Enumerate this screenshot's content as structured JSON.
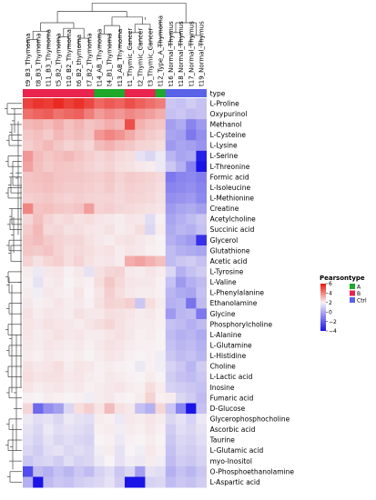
{
  "chart_data": {
    "type": "heatmap",
    "title": "",
    "samples": [
      "t9_B3_Thymoma",
      "t8_B3_Thymoma",
      "t11_B3_Thymoma",
      "t5_B2_Thymoma",
      "t10_B2_Thymoma",
      "t6_B2_thymoma",
      "t7_B2_Thymoma",
      "t14_AB_Thymoma",
      "t4_B1_Thymoma",
      "t13_AB_Thymoma",
      "t1_Thymic_Cancer",
      "t2_Thymic_Cancer",
      "t3_Thymic_Cancer",
      "t12_Type_A_Thymoma",
      "t16_Normal_Thymus",
      "t18_Normal_Thymus",
      "t17_Normal_Thymus",
      "t19_Normal_Thymus"
    ],
    "sample_types": [
      "B",
      "B",
      "B",
      "B",
      "B",
      "B",
      "B",
      "A",
      "A",
      "A",
      "B",
      "B",
      "B",
      "A",
      "Ctrl",
      "Ctrl",
      "Ctrl",
      "Ctrl"
    ],
    "metabolites": [
      "L-Proline",
      "Oxypurinol",
      "Methanol",
      "L-Cysteine",
      "L-Lysine",
      "L-Serine",
      "L-Threonine",
      "Formic acid",
      "L-Isoleucine",
      "L-Methionine",
      "Creatine",
      "Acetylcholine",
      "Succinic acid",
      "Glycerol",
      "Glutathione",
      "Acetic acid",
      "L-Tyrosine",
      "L-Valine",
      "L-Phenylalanine",
      "Ethanolamine",
      "Glycine",
      "Phosphorylcholine",
      "L-Alanine",
      "L-Glutamine",
      "L-Histidine",
      "Choline",
      "L-Lactic acid",
      "Inosine",
      "Fumaric acid",
      "D-Glucose",
      "Glycerophosphocholine",
      "Ascorbic acid",
      "Taurine",
      "L-Glutamic acid",
      "myo-Inositol",
      "O-Phosphoethanolamine",
      "L-Aspartic acid"
    ],
    "values": [
      [
        4.8,
        5.2,
        5.0,
        5.5,
        4.9,
        5.3,
        4.7,
        3.8,
        4.2,
        3.9,
        4.5,
        4.0,
        3.6,
        3.2,
        -0.8,
        -0.9,
        -0.7,
        -0.9
      ],
      [
        3.6,
        3.9,
        4.1,
        3.5,
        3.8,
        4.0,
        3.2,
        2.4,
        2.8,
        2.5,
        2.9,
        2.6,
        2.3,
        1.9,
        -0.9,
        -0.8,
        -1.0,
        -0.9
      ],
      [
        1.6,
        1.8,
        1.5,
        1.9,
        1.4,
        1.7,
        1.3,
        1.5,
        1.9,
        1.6,
        4.5,
        1.8,
        1.4,
        1.2,
        -1.5,
        -1.3,
        -2.0,
        -1.6
      ],
      [
        1.2,
        1.4,
        1.1,
        1.6,
        1.3,
        1.5,
        1.2,
        2.5,
        3.0,
        2.6,
        2.0,
        1.4,
        1.1,
        0.9,
        -1.4,
        -1.5,
        -2.2,
        -1.8
      ],
      [
        1.0,
        1.3,
        1.6,
        1.2,
        0.9,
        1.1,
        0.8,
        1.5,
        1.8,
        1.4,
        1.2,
        0.9,
        0.8,
        0.6,
        -1.6,
        -1.4,
        -1.5,
        -1.7
      ],
      [
        2.5,
        1.5,
        1.2,
        1.4,
        1.6,
        1.3,
        1.0,
        0.8,
        1.0,
        0.7,
        0.6,
        -0.3,
        -0.5,
        -0.2,
        -1.1,
        -1.4,
        -1.3,
        -3.8
      ],
      [
        2.2,
        1.4,
        1.1,
        1.3,
        1.2,
        1.1,
        0.9,
        0.7,
        0.9,
        0.6,
        0.5,
        0.3,
        0.2,
        -0.2,
        -0.8,
        -1.2,
        -2.0,
        -4.0
      ],
      [
        1.3,
        1.4,
        1.5,
        1.3,
        1.2,
        1.2,
        1.1,
        1.0,
        1.2,
        0.9,
        1.1,
        1.0,
        0.9,
        0.7,
        -2.2,
        -2.0,
        -1.9,
        -2.1
      ],
      [
        1.2,
        1.3,
        1.4,
        1.2,
        1.1,
        1.1,
        1.0,
        0.9,
        1.1,
        0.8,
        1.0,
        0.9,
        0.8,
        0.6,
        -2.0,
        -1.9,
        -1.8,
        -2.0
      ],
      [
        1.0,
        1.1,
        1.2,
        1.0,
        0.9,
        1.0,
        0.9,
        0.8,
        0.9,
        0.7,
        0.9,
        0.8,
        0.7,
        0.5,
        -1.8,
        -1.7,
        -1.6,
        -1.9
      ],
      [
        3.0,
        1.3,
        1.4,
        1.2,
        1.1,
        1.3,
        2.3,
        0.9,
        1.0,
        0.8,
        0.7,
        0.6,
        0.5,
        0.4,
        -1.6,
        -1.4,
        -1.3,
        -1.5
      ],
      [
        0.8,
        1.4,
        0.9,
        0.6,
        0.7,
        0.5,
        0.6,
        0.4,
        0.3,
        0.2,
        0.4,
        0.3,
        -0.4,
        0.1,
        -1.4,
        -1.2,
        -1.0,
        -0.8
      ],
      [
        1.1,
        1.6,
        0.7,
        0.8,
        0.5,
        0.6,
        0.4,
        0.3,
        0.5,
        0.2,
        0.3,
        0.6,
        -0.5,
        0.2,
        -1.3,
        -1.1,
        -1.2,
        -0.9
      ],
      [
        1.3,
        1.5,
        1.1,
        0.9,
        0.7,
        0.8,
        0.5,
        0.3,
        0.2,
        0.4,
        0.5,
        0.3,
        0.2,
        0.0,
        -1.2,
        -1.4,
        -1.6,
        -3.5
      ],
      [
        1.2,
        1.1,
        1.3,
        0.9,
        0.6,
        0.7,
        0.6,
        0.4,
        0.5,
        0.2,
        0.4,
        0.3,
        0.1,
        0.0,
        -1.0,
        -1.2,
        -1.3,
        -1.4
      ],
      [
        0.9,
        0.5,
        0.8,
        1.0,
        0.6,
        0.9,
        0.5,
        0.3,
        0.4,
        0.2,
        1.9,
        2.2,
        1.8,
        1.4,
        -1.0,
        -0.8,
        -0.7,
        -0.9
      ],
      [
        0.2,
        -0.2,
        0.3,
        0.4,
        0.1,
        0.3,
        -0.3,
        0.5,
        0.8,
        0.9,
        0.3,
        0.2,
        0.4,
        0.2,
        -0.5,
        -1.2,
        -0.9,
        -0.7
      ],
      [
        0.1,
        -0.3,
        0.2,
        0.3,
        0.0,
        0.2,
        0.1,
        0.6,
        1.2,
        0.7,
        0.4,
        0.3,
        0.3,
        0.1,
        -0.9,
        -1.6,
        -1.2,
        -1.0
      ],
      [
        0.2,
        -0.1,
        0.3,
        0.2,
        0.1,
        0.4,
        0.0,
        0.4,
        1.0,
        0.6,
        0.3,
        0.2,
        0.2,
        0.1,
        -1.1,
        -1.3,
        -1.4,
        -0.9
      ],
      [
        0.3,
        0.1,
        0.2,
        0.4,
        0.2,
        0.3,
        0.1,
        0.5,
        0.9,
        0.8,
        1.0,
        -0.8,
        0.6,
        0.2,
        -1.2,
        -1.1,
        -2.3,
        -1.0
      ],
      [
        0.5,
        0.2,
        0.4,
        0.3,
        0.2,
        0.5,
        0.3,
        0.3,
        0.6,
        0.5,
        0.4,
        0.2,
        0.3,
        0.1,
        -1.6,
        -1.1,
        -1.0,
        -2.2
      ],
      [
        0.4,
        0.3,
        0.5,
        0.4,
        0.3,
        0.2,
        0.4,
        0.6,
        0.8,
        0.5,
        0.3,
        0.2,
        0.2,
        0.1,
        -0.9,
        -1.0,
        -1.2,
        -1.0
      ],
      [
        0.4,
        0.2,
        0.3,
        0.5,
        0.3,
        0.4,
        0.2,
        0.2,
        0.4,
        0.5,
        0.3,
        0.1,
        0.2,
        0.0,
        -1.0,
        -1.2,
        -1.1,
        -1.3
      ],
      [
        0.3,
        0.2,
        0.4,
        0.3,
        0.2,
        0.3,
        0.1,
        0.3,
        0.5,
        0.4,
        0.2,
        0.1,
        0.1,
        0.0,
        -0.9,
        -1.1,
        -1.0,
        -1.2
      ],
      [
        0.2,
        0.1,
        0.3,
        0.2,
        0.1,
        0.2,
        0.0,
        0.2,
        0.4,
        0.3,
        0.1,
        0.0,
        0.1,
        -0.1,
        -0.8,
        -1.0,
        -0.9,
        -1.1
      ],
      [
        0.5,
        0.3,
        0.4,
        0.6,
        0.2,
        0.4,
        0.3,
        0.1,
        0.2,
        0.1,
        0.0,
        -0.2,
        0.1,
        -0.1,
        -0.6,
        -0.8,
        -1.1,
        -0.7
      ],
      [
        0.6,
        0.4,
        0.5,
        0.5,
        0.3,
        0.4,
        0.2,
        0.1,
        0.3,
        0.2,
        0.1,
        0.0,
        0.2,
        0.0,
        -0.7,
        -0.9,
        -1.0,
        -0.8
      ],
      [
        0.4,
        0.2,
        0.3,
        0.4,
        0.2,
        0.3,
        0.1,
        0.2,
        0.3,
        0.4,
        0.2,
        0.1,
        0.6,
        0.2,
        -0.6,
        -0.7,
        -0.8,
        -0.9
      ],
      [
        0.1,
        0.0,
        0.2,
        0.1,
        0.0,
        0.1,
        -0.1,
        0.2,
        0.3,
        0.1,
        0.0,
        0.2,
        0.9,
        0.1,
        0.2,
        -0.5,
        -0.7,
        -1.0
      ],
      [
        0.8,
        -2.5,
        -1.8,
        -1.5,
        -0.5,
        0.6,
        1.0,
        0.4,
        1.5,
        0.5,
        0.3,
        -0.9,
        -1.2,
        0.8,
        -0.8,
        -2.0,
        -4.0,
        -0.9
      ],
      [
        -0.2,
        -0.4,
        -0.3,
        -0.5,
        -0.2,
        -0.3,
        -0.4,
        0.2,
        0.1,
        -0.2,
        0.3,
        0.2,
        0.4,
        0.2,
        -0.5,
        -0.3,
        -0.6,
        -0.2
      ],
      [
        -0.3,
        -0.5,
        -0.2,
        -0.4,
        -0.3,
        -0.4,
        -0.5,
        0.1,
        0.2,
        -0.1,
        0.2,
        0.1,
        0.3,
        0.1,
        -0.7,
        -0.4,
        -0.5,
        -0.3
      ],
      [
        -0.4,
        -0.6,
        -0.3,
        -0.5,
        -0.4,
        -0.5,
        -0.6,
        0.0,
        0.1,
        -0.2,
        0.1,
        0.0,
        0.2,
        0.0,
        -0.8,
        -0.5,
        -0.6,
        -0.4
      ],
      [
        -0.5,
        -0.7,
        -0.4,
        -0.3,
        -0.5,
        -0.4,
        -0.5,
        -0.1,
        0.2,
        -0.3,
        0.0,
        -0.1,
        0.3,
        0.1,
        -0.9,
        -0.6,
        -0.7,
        -0.5
      ],
      [
        -0.8,
        -0.6,
        -0.5,
        -0.7,
        -0.4,
        -0.6,
        -0.5,
        -0.2,
        0.0,
        -0.3,
        -0.1,
        -0.2,
        0.2,
        -0.1,
        -1.0,
        -0.7,
        -0.8,
        -0.6
      ],
      [
        -3.0,
        -1.0,
        -1.2,
        -0.9,
        -1.1,
        -0.8,
        -1.0,
        -0.6,
        -0.4,
        -0.8,
        -0.5,
        -1.5,
        -0.3,
        -0.4,
        -1.2,
        -0.9,
        -1.1,
        -0.8
      ],
      [
        -1.2,
        -4.0,
        -1.0,
        -0.8,
        -0.9,
        -0.7,
        -0.6,
        -0.5,
        -0.3,
        -0.7,
        -4.0,
        -4.0,
        -0.6,
        -0.5,
        -1.0,
        -0.8,
        -0.9,
        -0.7
      ]
    ],
    "color_legend": {
      "title": "Pearson",
      "ticks": [
        6,
        4,
        2,
        0,
        -2,
        -4
      ],
      "range": [
        -4,
        6
      ]
    },
    "type_legend": {
      "title": "type",
      "entries": [
        {
          "label": "A",
          "color": "#1fa82a"
        },
        {
          "label": "B",
          "color": "#e8244f"
        },
        {
          "label": "Ctrl",
          "color": "#5a62e8"
        }
      ]
    },
    "annotation_label": "type",
    "colors": {
      "high": "#e8170f",
      "mid": "#f7f3f5",
      "low": "#1a14e6"
    }
  }
}
